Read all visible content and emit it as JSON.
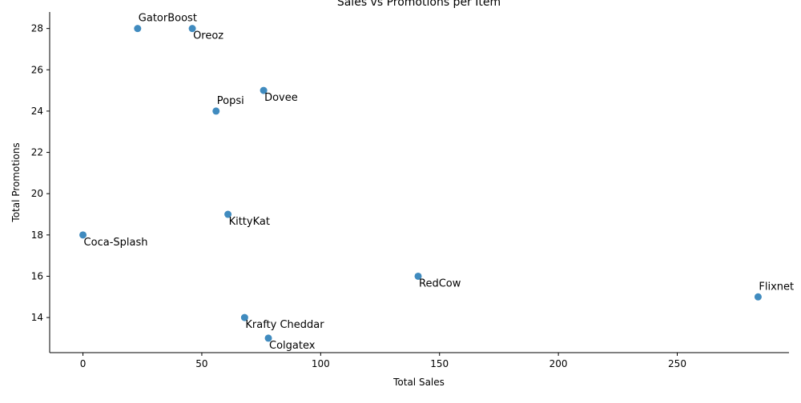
{
  "chart_data": {
    "type": "scatter",
    "title": "Sales vs Promotions per Item",
    "xlabel": "Total Sales",
    "ylabel": "Total Promotions",
    "xlim": [
      -14,
      297
    ],
    "ylim": [
      12.3,
      28.8
    ],
    "xticks": [
      0,
      50,
      100,
      150,
      200,
      250
    ],
    "yticks": [
      14,
      16,
      18,
      20,
      22,
      24,
      26,
      28
    ],
    "grid": false,
    "marker_color": "#1f77b4",
    "points": [
      {
        "label": "GatorBoost",
        "x": 23,
        "y": 28,
        "label_pos": "above"
      },
      {
        "label": "Oreoz",
        "x": 46,
        "y": 28,
        "label_pos": "below"
      },
      {
        "label": "Dovee",
        "x": 76,
        "y": 25,
        "label_pos": "below"
      },
      {
        "label": "Popsi",
        "x": 56,
        "y": 24,
        "label_pos": "above"
      },
      {
        "label": "KittyKat",
        "x": 61,
        "y": 19,
        "label_pos": "below"
      },
      {
        "label": "Coca-Splash",
        "x": 0,
        "y": 18,
        "label_pos": "below"
      },
      {
        "label": "RedCow",
        "x": 141,
        "y": 16,
        "label_pos": "below"
      },
      {
        "label": "Flixnet",
        "x": 284,
        "y": 15,
        "label_pos": "above"
      },
      {
        "label": "Krafty Cheddar",
        "x": 68,
        "y": 14,
        "label_pos": "below"
      },
      {
        "label": "Colgatex",
        "x": 78,
        "y": 13,
        "label_pos": "below"
      }
    ]
  }
}
